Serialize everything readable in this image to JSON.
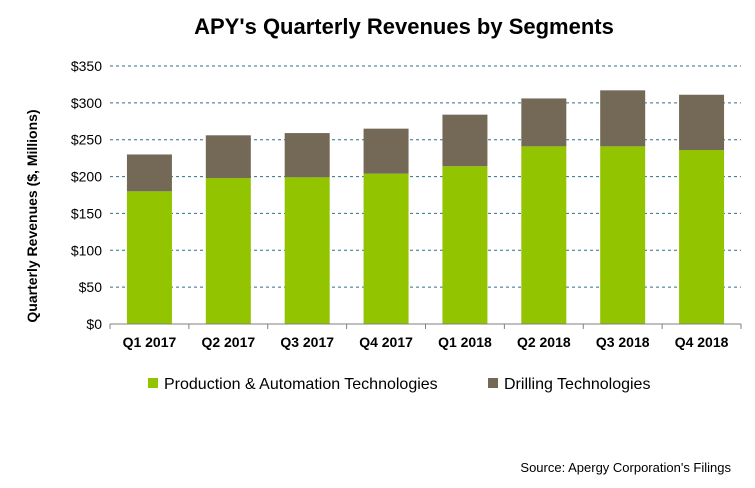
{
  "chart_data": {
    "type": "bar",
    "stacked": true,
    "title": "APY's Quarterly Revenues by Segments",
    "ylabel": "Quarterly Revenues ($, Millions)",
    "xlabel": "",
    "categories": [
      "Q1 2017",
      "Q2 2017",
      "Q3 2017",
      "Q4 2017",
      "Q1 2018",
      "Q2 2018",
      "Q3 2018",
      "Q4 2018"
    ],
    "series": [
      {
        "name": "Production & Automation Technologies",
        "color": "#92c400",
        "values": [
          180,
          198,
          199,
          204,
          214,
          241,
          241,
          236
        ]
      },
      {
        "name": "Drilling Technologies",
        "color": "#746957",
        "values": [
          50,
          58,
          60,
          61,
          70,
          65,
          76,
          75
        ]
      }
    ],
    "ylim": [
      0,
      350
    ],
    "yticks": [
      0,
      50,
      100,
      150,
      200,
      250,
      300,
      350
    ],
    "ytick_labels": [
      "$0",
      "$50",
      "$100",
      "$150",
      "$200",
      "$250",
      "$300",
      "$350"
    ],
    "grid": true,
    "legend_position": "bottom",
    "source": "Source: Apergy Corporation's Filings"
  }
}
